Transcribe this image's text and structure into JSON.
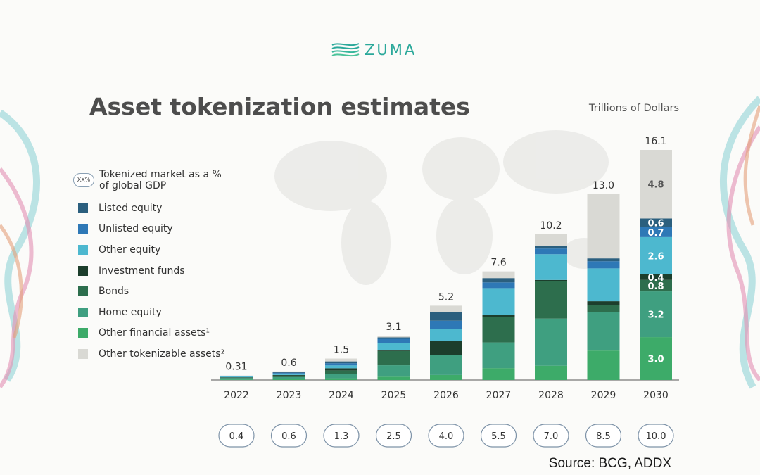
{
  "brand": {
    "name": "ZUMA"
  },
  "chart_data": {
    "type": "bar",
    "stacked": true,
    "title": "Asset tokenization estimates",
    "unit_label": "Trillions of Dollars",
    "source": "Source: BCG, ADDX",
    "categories": [
      "2022",
      "2023",
      "2024",
      "2025",
      "2026",
      "2027",
      "2028",
      "2029",
      "2030"
    ],
    "totals": [
      "0.31",
      "0.6",
      "1.5",
      "3.1",
      "5.2",
      "7.6",
      "10.2",
      "13.0",
      "16.1"
    ],
    "total_values": [
      0.31,
      0.6,
      1.5,
      3.1,
      5.2,
      7.6,
      10.2,
      13.0,
      16.1
    ],
    "gdp_pct": [
      "0.4",
      "0.6",
      "1.3",
      "2.5",
      "4.0",
      "5.5",
      "7.0",
      "8.5",
      "10.0"
    ],
    "gdp_legend_marker": "XX%",
    "gdp_legend_label": "Tokenized market as a % of global GDP",
    "ylim": [
      0,
      16.1
    ],
    "series": [
      {
        "name": "Other financial assets¹",
        "color": "#3dab69",
        "values": [
          0.03,
          0.05,
          0.12,
          0.23,
          0.35,
          0.83,
          1.0,
          2.06,
          3.0
        ],
        "labels": [
          "",
          "",
          "",
          "",
          "",
          "",
          "",
          "",
          "3.0"
        ]
      },
      {
        "name": "Home equity",
        "color": "#3f9f80",
        "values": [
          0.1,
          0.15,
          0.3,
          0.8,
          1.4,
          1.8,
          3.3,
          2.7,
          3.2
        ],
        "labels": [
          "",
          "",
          "",
          "",
          "",
          "",
          "",
          "",
          "3.2"
        ]
      },
      {
        "name": "Bonds",
        "color": "#2d6e4d",
        "values": [
          0.04,
          0.1,
          0.25,
          1.0,
          0.0,
          1.8,
          2.6,
          0.5,
          0.8
        ],
        "labels": [
          "",
          "",
          "",
          "",
          "",
          "",
          "",
          "",
          "0.8"
        ]
      },
      {
        "name": "Investment funds",
        "color": "#1c3e2c",
        "values": [
          0.02,
          0.05,
          0.15,
          0.05,
          1.0,
          0.1,
          0.1,
          0.25,
          0.4
        ],
        "labels": [
          "",
          "",
          "",
          "",
          "",
          "",
          "",
          "",
          "0.4"
        ]
      },
      {
        "name": "Other equity",
        "color": "#4db8cf",
        "values": [
          0.05,
          0.1,
          0.2,
          0.5,
          0.8,
          1.9,
          1.8,
          2.3,
          2.6
        ],
        "labels": [
          "",
          "",
          "",
          "",
          "",
          "",
          "",
          "",
          "2.6"
        ]
      },
      {
        "name": "Unlisted equity",
        "color": "#2e78b6",
        "values": [
          0.03,
          0.05,
          0.15,
          0.3,
          0.6,
          0.4,
          0.4,
          0.5,
          0.7
        ],
        "labels": [
          "",
          "",
          "",
          "",
          "",
          "",
          "",
          "",
          "0.7"
        ]
      },
      {
        "name": "Listed equity",
        "color": "#2b5f7e",
        "values": [
          0.02,
          0.05,
          0.13,
          0.1,
          0.6,
          0.3,
          0.2,
          0.2,
          0.6
        ],
        "labels": [
          "",
          "",
          "",
          "",
          "",
          "",
          "",
          "",
          "0.6"
        ]
      },
      {
        "name": "Other tokenizable assets²",
        "color": "#d9d9d4",
        "values": [
          0.02,
          0.05,
          0.2,
          0.12,
          0.45,
          0.47,
          0.8,
          4.49,
          4.8
        ],
        "labels": [
          "",
          "",
          "",
          "",
          "",
          "",
          "",
          "",
          "4.8"
        ]
      }
    ],
    "legend_order": [
      "Listed equity",
      "Unlisted equity",
      "Other equity",
      "Investment funds",
      "Bonds",
      "Home equity",
      "Other financial assets¹",
      "Other tokenizable assets²"
    ],
    "legend_colors": [
      "#2b5f7e",
      "#2e78b6",
      "#4db8cf",
      "#1c3e2c",
      "#2d6e4d",
      "#3f9f80",
      "#3dab69",
      "#d9d9d4"
    ]
  }
}
